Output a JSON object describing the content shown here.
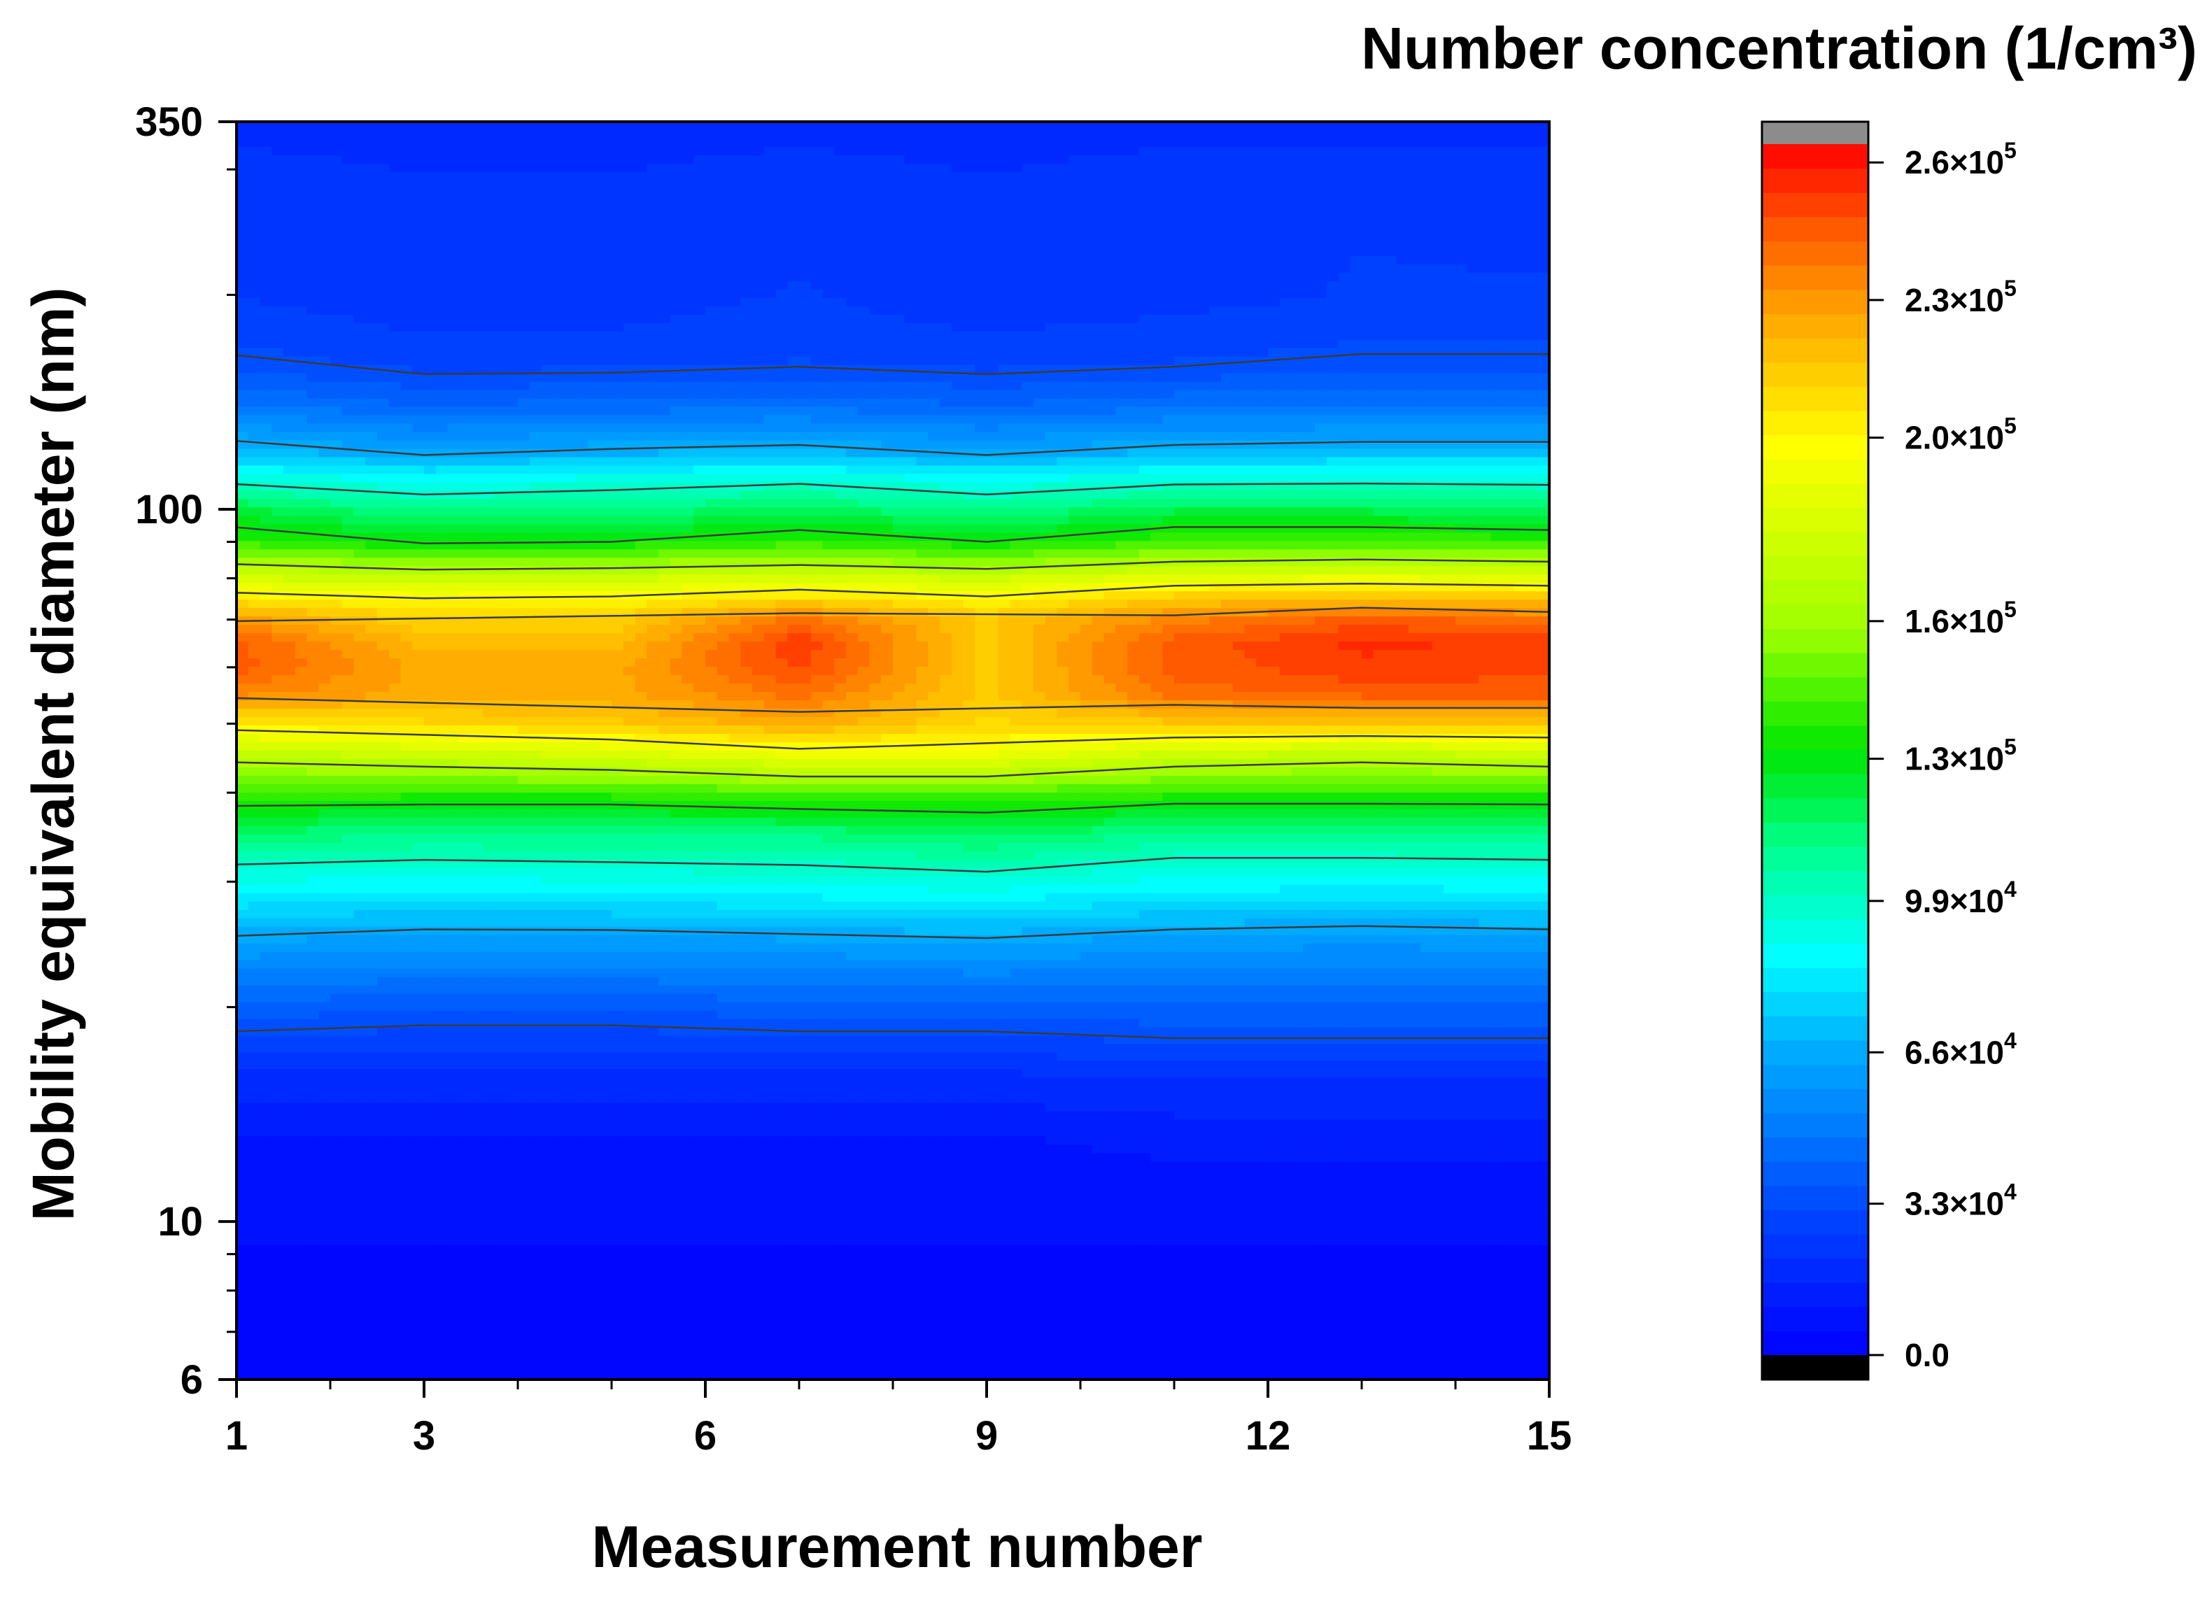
{
  "chart_data": {
    "type": "contour",
    "title": "",
    "xlabel": "Measurement number",
    "ylabel": "Mobility equivalent diameter (nm)",
    "colorbar_title": "Number concentration (1/cm³)",
    "x_ticks": [
      1,
      3,
      6,
      9,
      12,
      15
    ],
    "x_tick_labels": [
      "1",
      "3",
      "6",
      "9",
      "12",
      "15"
    ],
    "y_scale": "log",
    "y_ticks": [
      6,
      10,
      100,
      350
    ],
    "y_tick_labels": [
      "6",
      "10",
      "100",
      "350"
    ],
    "xlim": [
      1,
      15
    ],
    "ylim": [
      6,
      350
    ],
    "colorbar_ticks": [
      0,
      33000,
      66000,
      99000,
      130000,
      160000,
      200000,
      230000,
      260000
    ],
    "colorbar_tick_labels": [
      {
        "mantissa": "0.0",
        "exponent": ""
      },
      {
        "mantissa": "3.3×10",
        "exponent": "4"
      },
      {
        "mantissa": "6.6×10",
        "exponent": "4"
      },
      {
        "mantissa": "9.9×10",
        "exponent": "4"
      },
      {
        "mantissa": "1.3×10",
        "exponent": "5"
      },
      {
        "mantissa": "1.6×10",
        "exponent": "5"
      },
      {
        "mantissa": "2.0×10",
        "exponent": "5"
      },
      {
        "mantissa": "2.3×10",
        "exponent": "5"
      },
      {
        "mantissa": "2.6×10",
        "exponent": "5"
      }
    ],
    "colorbar_range": [
      0,
      264000
    ],
    "colorbar_levels": 50,
    "x": [
      1,
      3,
      5,
      7,
      9,
      11,
      13,
      15
    ],
    "y": [
      6,
      8,
      10,
      13,
      16,
      20,
      25,
      30,
      35,
      40,
      45,
      50,
      55,
      60,
      65,
      70,
      75,
      80,
      85,
      90,
      100,
      110,
      120,
      140,
      160,
      200,
      250,
      300,
      350
    ],
    "z": [
      [
        3000,
        3000,
        3000,
        3000,
        3000,
        3000,
        3000,
        3000
      ],
      [
        4000,
        4000,
        4000,
        4000,
        4000,
        4000,
        4000,
        4000
      ],
      [
        6000,
        6000,
        6000,
        6000,
        6000,
        6000,
        6000,
        6000
      ],
      [
        10000,
        10000,
        10000,
        10000,
        10000,
        12000,
        12000,
        12000
      ],
      [
        20000,
        19000,
        19000,
        20000,
        20000,
        22000,
        22000,
        22000
      ],
      [
        40000,
        38000,
        38000,
        40000,
        40000,
        42000,
        42000,
        42000
      ],
      [
        65000,
        62000,
        62000,
        64000,
        66000,
        62000,
        60000,
        62000
      ],
      [
        90000,
        88000,
        90000,
        92000,
        94000,
        88000,
        88000,
        88000
      ],
      [
        115000,
        112000,
        112000,
        112000,
        118000,
        110000,
        110000,
        112000
      ],
      [
        140000,
        140000,
        140000,
        145000,
        145000,
        140000,
        140000,
        140000
      ],
      [
        170000,
        175000,
        180000,
        190000,
        190000,
        175000,
        170000,
        175000
      ],
      [
        205000,
        210000,
        215000,
        225000,
        210000,
        215000,
        215000,
        215000
      ],
      [
        235000,
        225000,
        225000,
        240000,
        215000,
        240000,
        245000,
        245000
      ],
      [
        245000,
        225000,
        225000,
        250000,
        215000,
        245000,
        252000,
        250000
      ],
      [
        245000,
        220000,
        220000,
        252000,
        215000,
        245000,
        255000,
        252000
      ],
      [
        230000,
        212000,
        212000,
        240000,
        215000,
        235000,
        245000,
        240000
      ],
      [
        205000,
        198000,
        200000,
        210000,
        200000,
        215000,
        220000,
        215000
      ],
      [
        180000,
        176000,
        178000,
        182000,
        178000,
        188000,
        190000,
        188000
      ],
      [
        160000,
        152000,
        154000,
        158000,
        152000,
        162000,
        165000,
        162000
      ],
      [
        140000,
        130000,
        132000,
        140000,
        132000,
        142000,
        142000,
        140000
      ],
      [
        122000,
        110000,
        112000,
        118000,
        110000,
        120000,
        120000,
        118000
      ],
      [
        95000,
        88000,
        92000,
        96000,
        88000,
        95000,
        96000,
        95000
      ],
      [
        72000,
        64000,
        68000,
        70000,
        64000,
        70000,
        72000,
        72000
      ],
      [
        48000,
        42000,
        44000,
        46000,
        42000,
        46000,
        46000,
        46000
      ],
      [
        34000,
        30000,
        30000,
        32000,
        30000,
        32000,
        34000,
        34000
      ],
      [
        26000,
        22000,
        23000,
        27000,
        22000,
        24000,
        27000,
        27000
      ],
      [
        24000,
        22000,
        22000,
        24000,
        22000,
        24000,
        26000,
        25000
      ],
      [
        22000,
        21000,
        21000,
        22000,
        21000,
        22000,
        22000,
        22000
      ],
      [
        20000,
        20000,
        20000,
        20000,
        20000,
        20000,
        20000,
        20000
      ]
    ],
    "contour_line_values": [
      33000,
      66000,
      99000,
      132000,
      165000,
      198000,
      231000
    ]
  }
}
